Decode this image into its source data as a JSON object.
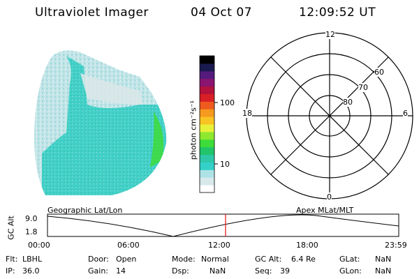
{
  "header": {
    "title": "Ultraviolet Imager",
    "date": "04 Oct 07",
    "time": "12:09:52 UT"
  },
  "colorbar": {
    "unit_label": "photon cm⁻²s⁻¹",
    "ticks": [
      {
        "label": "100",
        "value": 100
      },
      {
        "label": "10",
        "value": 10
      }
    ],
    "colors": [
      "#ffffff",
      "#d7e9ea",
      "#aee3e6",
      "#34d1c8",
      "#2ec8a8",
      "#22c46a",
      "#3ddc3a",
      "#8ee82f",
      "#e8f13a",
      "#f9c323",
      "#f59a1e",
      "#ee5b1e",
      "#d81f25",
      "#b3123d",
      "#8a1470",
      "#541b7c",
      "#1a1a50",
      "#000000"
    ]
  },
  "polar_plot": {
    "labels": {
      "mlt_top": "12",
      "mlt_left": "18",
      "mlt_right": "6",
      "mlt_bottom": "0",
      "lat_60": "60",
      "lat_70": "70",
      "lat_80": "80"
    }
  },
  "timeline": {
    "y_axis_label": "GC Alt",
    "y_max": "9.0",
    "y_min": "1.8",
    "left_caption": "Geographic Lat/Lon",
    "right_caption": "Apex MLat/MLT",
    "x_ticks": [
      "00:00",
      "06:00",
      "12:00",
      "18:00",
      "23:59"
    ],
    "current_time_fraction": 0.5069,
    "marker_color": "#e02020"
  },
  "status": {
    "col1": [
      {
        "label": "Flt:",
        "value": "LBHL"
      },
      {
        "label": "IP:",
        "value": "36.0"
      }
    ],
    "col2": [
      {
        "label": "Door:",
        "value": "Open"
      },
      {
        "label": "Gain:",
        "value": "14"
      }
    ],
    "col3": [
      {
        "label": "Mode:",
        "value": "Normal"
      },
      {
        "label": "Dsp:",
        "value": "NaN"
      }
    ],
    "col4": [
      {
        "label": "GC Alt:",
        "value": "6.4 Re"
      },
      {
        "label": "Seq:",
        "value": "39"
      }
    ],
    "col5": [
      {
        "label": "GLat:",
        "value": "NaN"
      },
      {
        "label": "GLon:",
        "value": "NaN"
      }
    ]
  }
}
